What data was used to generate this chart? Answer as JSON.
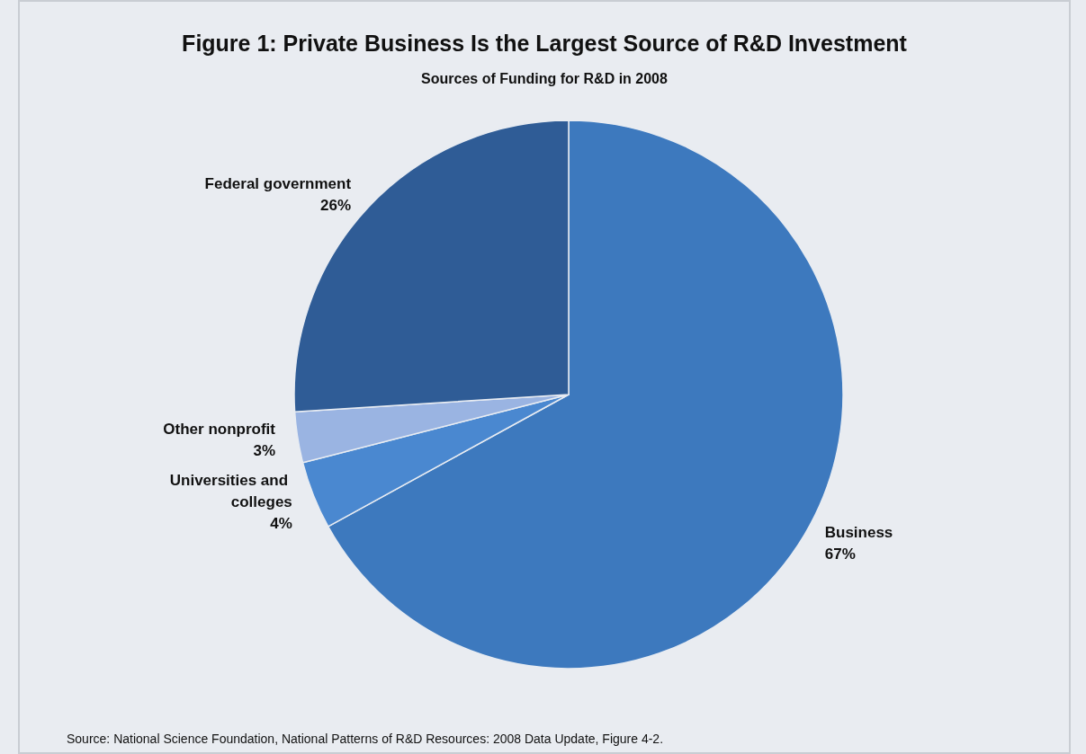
{
  "chart_data": {
    "type": "pie",
    "title": "Figure 1: Private Business Is the Largest Source of R&D Investment",
    "subtitle": "Sources of Funding for R&D in 2008",
    "categories": [
      "Business",
      "Universities and colleges",
      "Other nonprofit",
      "Federal government"
    ],
    "values": [
      67,
      4,
      3,
      26
    ],
    "colors": [
      "#3d79be",
      "#4a88d0",
      "#9ab4e2",
      "#2f5c96"
    ],
    "value_labels": [
      "67%",
      "4%",
      "3%",
      "26%"
    ],
    "legend": false,
    "annotations": [
      "Source: National Science Foundation, National Patterns of R&D Resources: 2008 Data Update, Figure 4-2."
    ]
  }
}
